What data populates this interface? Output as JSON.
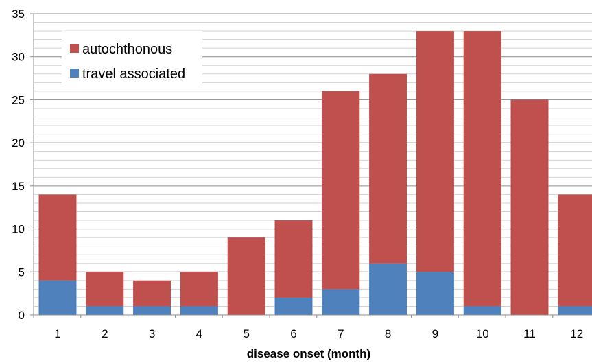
{
  "chart_data": {
    "type": "bar",
    "stacked": true,
    "title": "",
    "xlabel": "disease onset (month)",
    "ylabel": "",
    "categories": [
      "1",
      "2",
      "3",
      "4",
      "5",
      "6",
      "7",
      "8",
      "9",
      "10",
      "11",
      "12"
    ],
    "series": [
      {
        "name": "travel associated",
        "color": "#4f81bd",
        "values": [
          4,
          1,
          1,
          1,
          0,
          2,
          3,
          6,
          5,
          1,
          0,
          1
        ]
      },
      {
        "name": "autochthonous",
        "color": "#c0504d",
        "values": [
          10,
          4,
          3,
          4,
          9,
          9,
          23,
          22,
          28,
          32,
          25,
          13
        ]
      }
    ],
    "ylim": [
      0,
      35
    ],
    "yticks": [
      "0",
      "5",
      "10",
      "15",
      "20",
      "25",
      "30",
      "35"
    ],
    "minor_grid_step": 1,
    "grid": true,
    "legend": {
      "position": "top-left",
      "items": [
        "autochthonous",
        "travel associated"
      ]
    }
  }
}
